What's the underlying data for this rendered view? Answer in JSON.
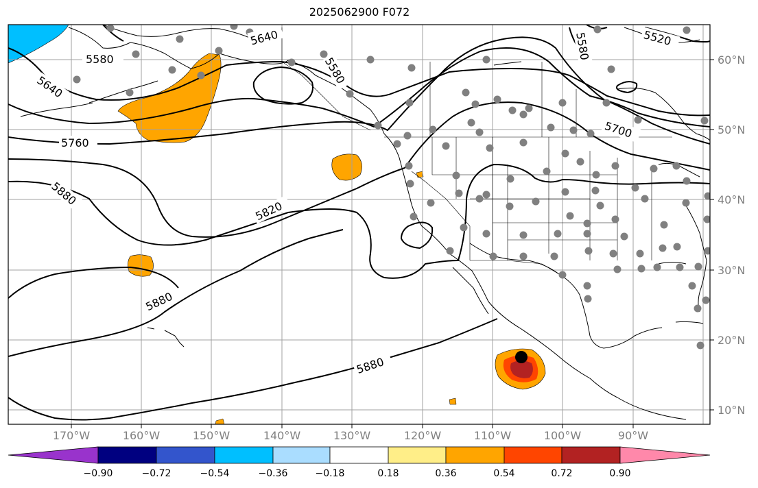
{
  "title": "2025062900 F072",
  "map": {
    "lat_labels": [
      "60°N",
      "50°N",
      "40°N",
      "30°N",
      "20°N",
      "10°N"
    ],
    "lon_labels": [
      "170°W",
      "160°W",
      "150°W",
      "140°W",
      "130°W",
      "120°W",
      "110°W",
      "100°W",
      "90°W"
    ],
    "contour_labels": [
      "5520",
      "5580",
      "5580",
      "5580",
      "5640",
      "5640",
      "5700",
      "5760",
      "5820",
      "5880",
      "5880",
      "5880"
    ],
    "marker": "storm-center"
  },
  "colorbar": {
    "tick_labels": [
      "−0.90",
      "−0.72",
      "−0.54",
      "−0.36",
      "−0.18",
      "0.18",
      "0.36",
      "0.54",
      "0.72",
      "0.90"
    ],
    "colors": [
      "#9933cc",
      "#000080",
      "#3355cc",
      "#00bfff",
      "#aaddff",
      "#ffffff",
      "#ffee88",
      "#ffa500",
      "#ff4500",
      "#b22222",
      "#ff88aa"
    ]
  }
}
